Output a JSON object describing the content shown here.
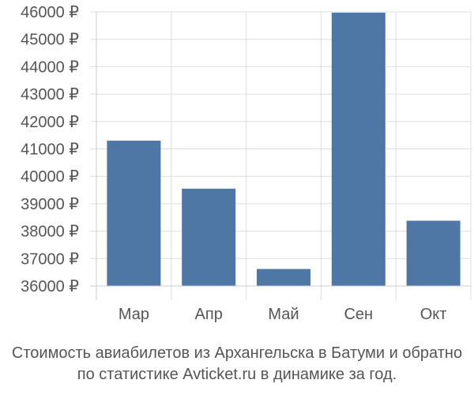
{
  "caption": {
    "line1": "Стоимость авиабилетов из Архангельска в Батуми и обратно",
    "line2": "по статистике Avticket.ru в динамике за год."
  },
  "chart_data": {
    "type": "bar",
    "title": "",
    "xlabel": "",
    "ylabel": "",
    "categories": [
      "Мар",
      "Апр",
      "Май",
      "Сен",
      "Окт"
    ],
    "values": [
      41300,
      39550,
      36620,
      45970,
      38380
    ],
    "ylim": [
      36000,
      46000
    ],
    "yticks": [
      36000,
      37000,
      38000,
      39000,
      40000,
      41000,
      42000,
      43000,
      44000,
      45000,
      46000
    ],
    "ytick_labels": [
      "36000 ₽",
      "37000 ₽",
      "38000 ₽",
      "39000 ₽",
      "40000 ₽",
      "41000 ₽",
      "42000 ₽",
      "43000 ₽",
      "44000 ₽",
      "45000 ₽",
      "46000 ₽"
    ],
    "grid": true,
    "bar_color": "#4e77a6",
    "grid_color": "#dddddd",
    "axis_color": "#cccccc",
    "label_color": "#555555"
  }
}
